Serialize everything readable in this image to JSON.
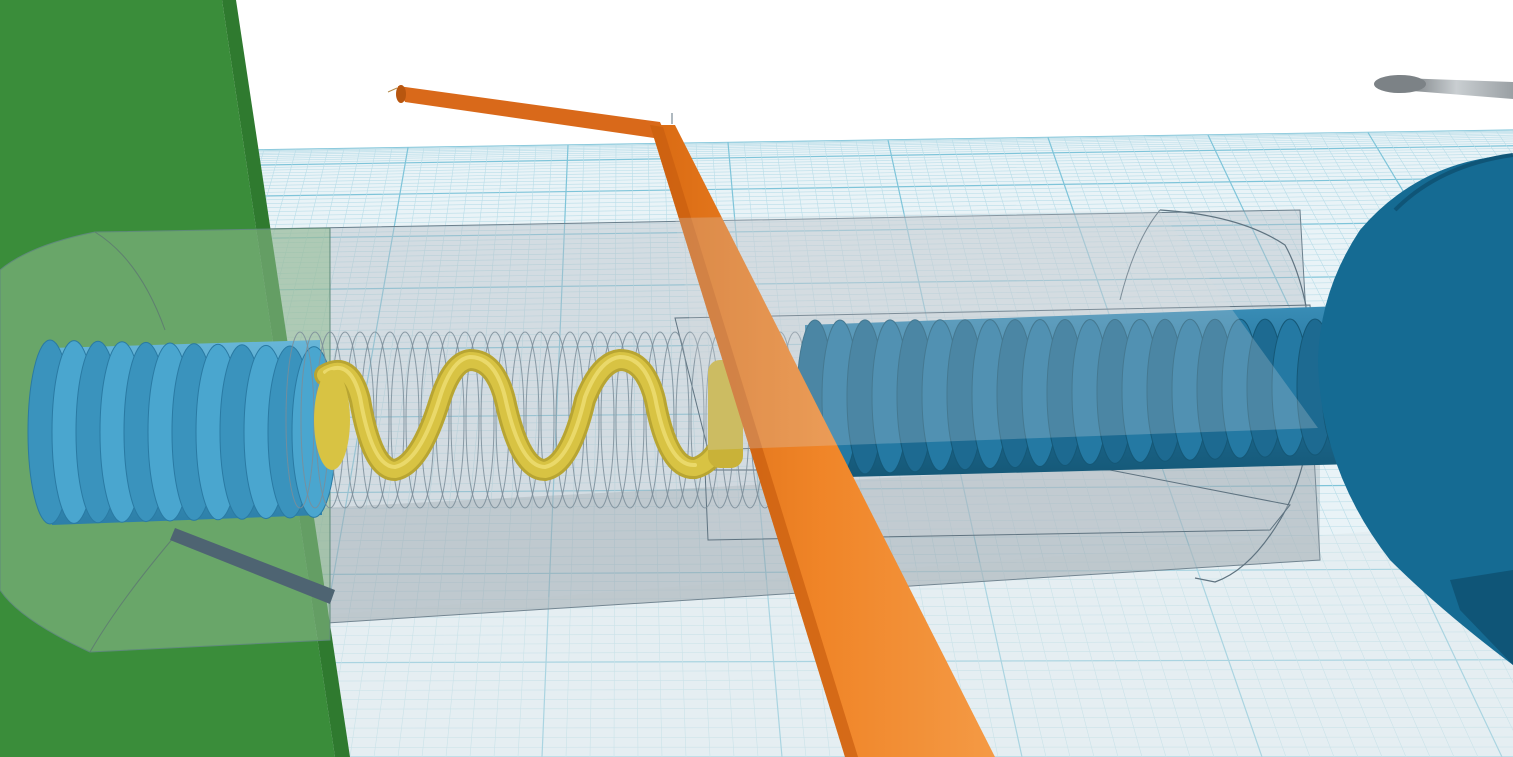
{
  "app": {
    "name": "",
    "view": "3D workplane"
  },
  "scene": {
    "workplane_color": "#e9f3f7",
    "grid_major_color": "#7ec4d9",
    "grid_minor_color": "#b9dde8",
    "objects": [
      {
        "id": "wall",
        "name": "",
        "color": "#3a8d3a",
        "icon": "box-shape"
      },
      {
        "id": "threaded-rod-left",
        "name": "",
        "color": "#3f9cc6",
        "icon": "thread-shape"
      },
      {
        "id": "spring",
        "name": "",
        "color": "#d8c343",
        "icon": "spring-shape"
      },
      {
        "id": "spring-ghost",
        "name": "",
        "color": "#8a9aa6",
        "icon": "spring-shape"
      },
      {
        "id": "hollow-sleeve",
        "name": "",
        "color": "#bcc6cc",
        "icon": "tube-shape"
      },
      {
        "id": "threaded-rod-right",
        "name": "",
        "color": "#1f6f98",
        "icon": "thread-shape"
      },
      {
        "id": "end-disc",
        "name": "",
        "color": "#156b93",
        "icon": "cylinder-shape"
      },
      {
        "id": "bent-rod",
        "name": "",
        "color": "#ee7d22",
        "icon": "rod-shape"
      },
      {
        "id": "pin",
        "name": "",
        "color": "#9aa0a4",
        "icon": "pin-shape"
      }
    ]
  }
}
